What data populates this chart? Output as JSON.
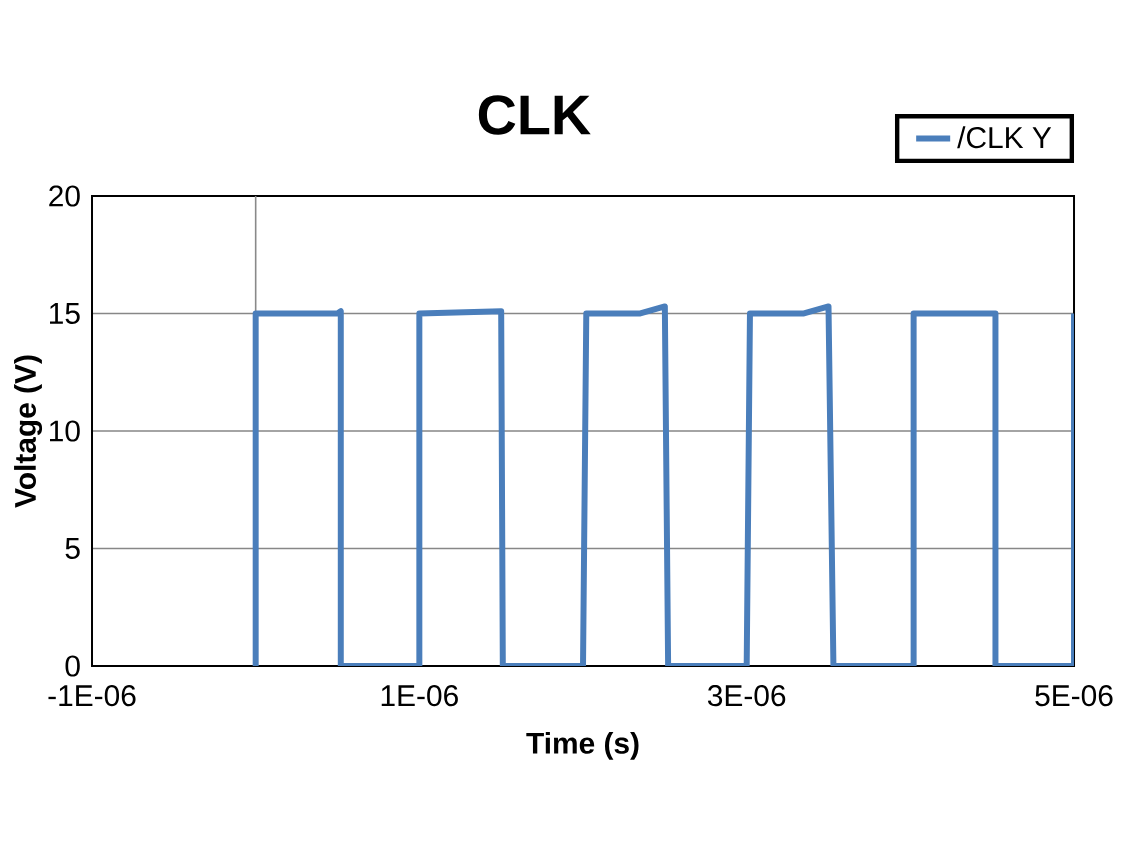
{
  "chart_data": {
    "type": "line",
    "title": "CLK",
    "xlabel": "Time (s)",
    "ylabel": "Voltage (V)",
    "series": [
      {
        "name": "/CLK Y",
        "color": "#4a7ebb",
        "x": [
          0,
          0,
          5e-07,
          5.2e-07,
          5.2e-07,
          1e-06,
          1e-06,
          1.5e-06,
          1.51e-06,
          2e-06,
          2.02e-06,
          2.35e-06,
          2.5e-06,
          2.52e-06,
          3e-06,
          3.02e-06,
          3.35e-06,
          3.5e-06,
          3.53e-06,
          4.02e-06,
          4.02e-06,
          4.52e-06,
          4.52e-06,
          5e-06,
          5e-06
        ],
        "values": [
          0,
          15,
          15,
          15.1,
          0,
          0,
          15,
          15.1,
          0,
          0,
          15,
          15,
          15.3,
          0,
          0,
          15,
          15,
          15.3,
          0,
          0,
          15,
          15,
          0,
          0,
          15
        ]
      }
    ],
    "xlim": [
      -1e-06,
      5e-06
    ],
    "ylim": [
      0,
      20
    ],
    "xticks": [
      {
        "value": -1e-06,
        "label": "-1E-06"
      },
      {
        "value": 1e-06,
        "label": "1E-06"
      },
      {
        "value": 3e-06,
        "label": "3E-06"
      },
      {
        "value": 5e-06,
        "label": "5E-06"
      }
    ],
    "yticks": [
      0,
      5,
      10,
      15,
      20
    ],
    "ref_lines": [
      {
        "axis": "x",
        "value": 0,
        "color": "#898989"
      }
    ],
    "grid": "y",
    "legend": "top right",
    "marker": "none",
    "line_style": "solid"
  }
}
